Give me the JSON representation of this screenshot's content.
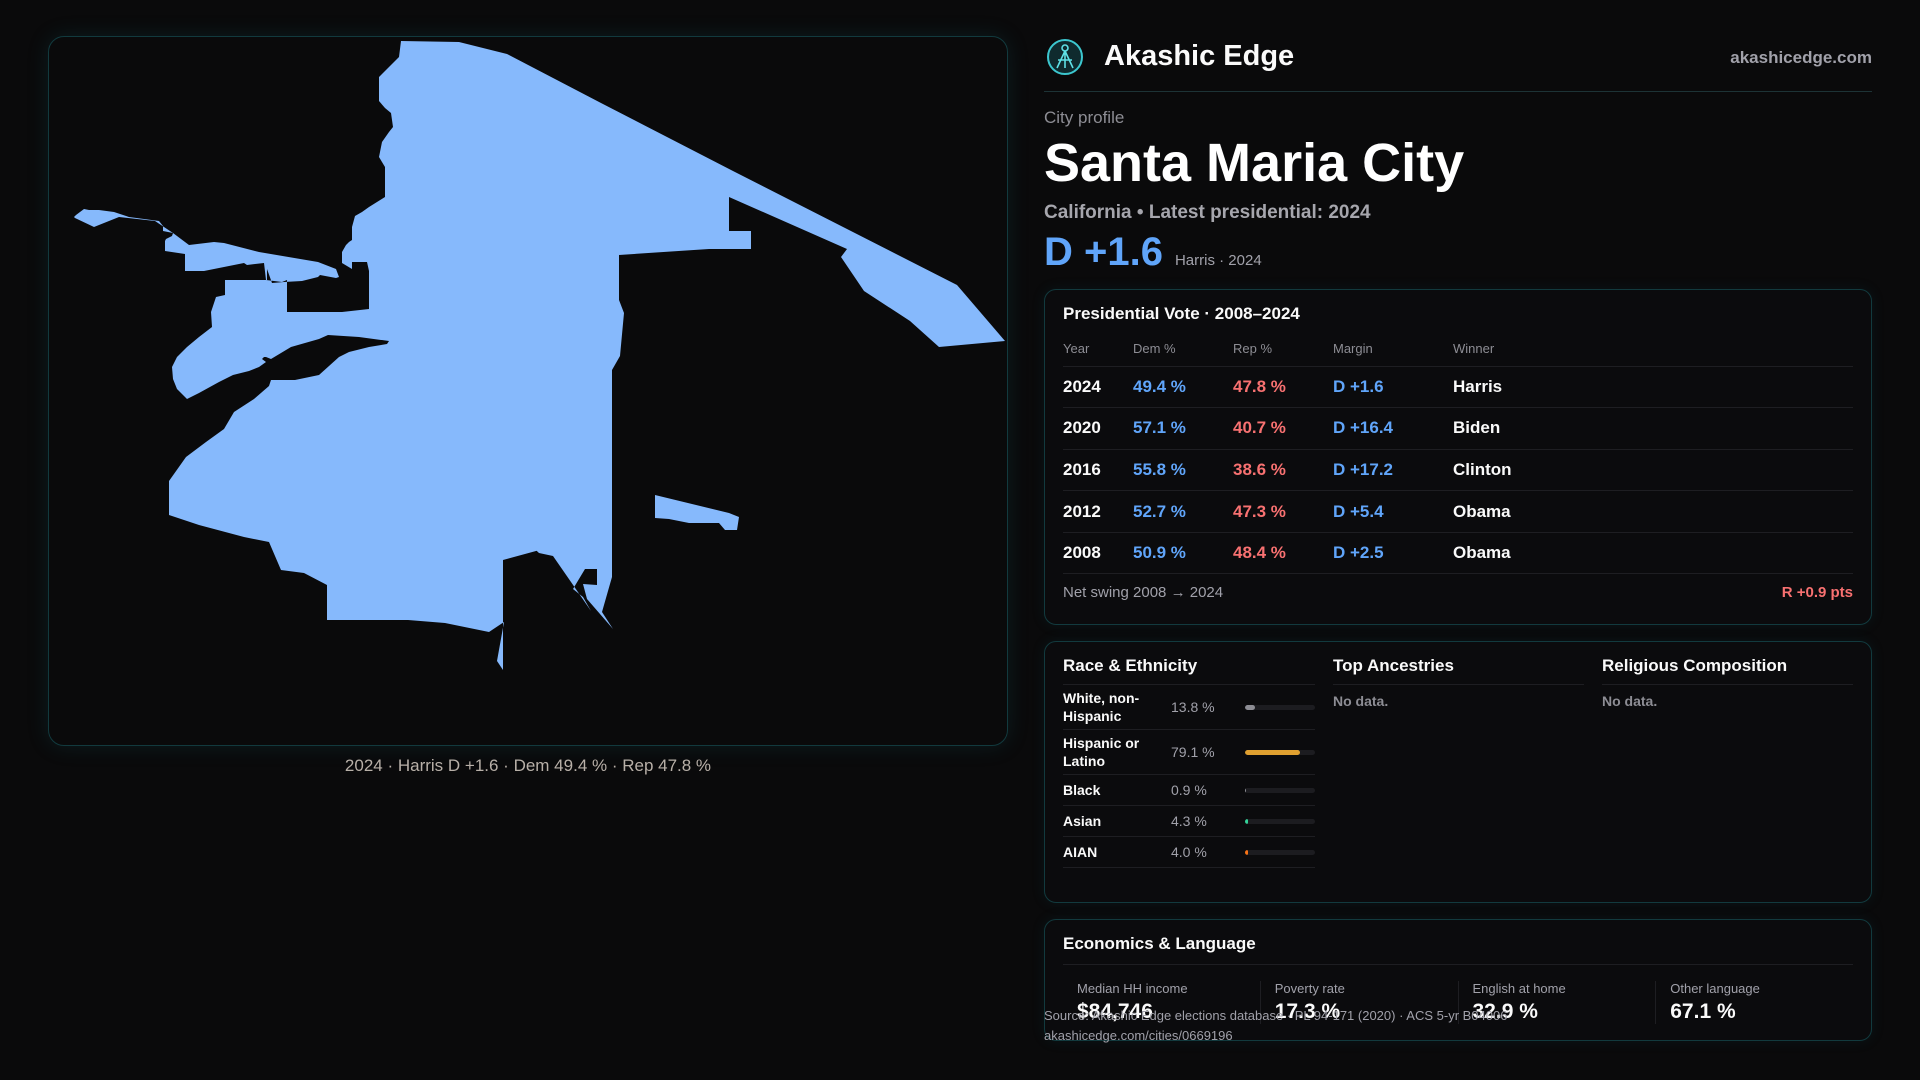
{
  "brand": {
    "name": "Akashic Edge",
    "site": "akashicedge.com"
  },
  "profile": {
    "eyebrow": "City profile",
    "city": "Santa Maria City",
    "subtitle": "California • Latest presidential: 2024",
    "margin": "D +1.6",
    "margin_note": "Harris · 2024"
  },
  "map": {
    "caption": "2024 · Harris D +1.6 · Dem 49.4 % · Rep 47.8 %",
    "fill_color": "#86b9fc"
  },
  "vote": {
    "title": "Presidential Vote · 2008–2024",
    "headers": {
      "year": "Year",
      "dem": "Dem %",
      "rep": "Rep %",
      "margin": "Margin",
      "winner": "Winner"
    },
    "rows": [
      {
        "year": "2024",
        "dem": "49.4 %",
        "rep": "47.8 %",
        "margin": "D +1.6",
        "winner": "Harris"
      },
      {
        "year": "2020",
        "dem": "57.1 %",
        "rep": "40.7 %",
        "margin": "D +16.4",
        "winner": "Biden"
      },
      {
        "year": "2016",
        "dem": "55.8 %",
        "rep": "38.6 %",
        "margin": "D +17.2",
        "winner": "Clinton"
      },
      {
        "year": "2012",
        "dem": "52.7 %",
        "rep": "47.3 %",
        "margin": "D +5.4",
        "winner": "Obama"
      },
      {
        "year": "2008",
        "dem": "50.9 %",
        "rep": "48.4 %",
        "margin": "D +2.5",
        "winner": "Obama"
      }
    ],
    "swing_label": "Net swing 2008 → 2024",
    "swing_value": "R +0.9 pts"
  },
  "demographics": {
    "race_title": "Race & Ethnicity",
    "race": [
      {
        "label": "White, non-Hispanic",
        "value": "13.8 %",
        "pct": 13.8,
        "color": "#8d8d94"
      },
      {
        "label": "Hispanic or Latino",
        "value": "79.1 %",
        "pct": 79.1,
        "color": "#e0a030"
      },
      {
        "label": "Black",
        "value": "0.9 %",
        "pct": 0.9,
        "color": "#8d8d94"
      },
      {
        "label": "Asian",
        "value": "4.3 %",
        "pct": 4.3,
        "color": "#34d399"
      },
      {
        "label": "AIAN",
        "value": "4.0 %",
        "pct": 4.0,
        "color": "#f97316"
      }
    ],
    "ancestries_title": "Top Ancestries",
    "ancestries_empty": "No data.",
    "religion_title": "Religious Composition",
    "religion_empty": "No data."
  },
  "economics": {
    "title": "Economics & Language",
    "cells": [
      {
        "label": "Median HH income",
        "value": "$84,746"
      },
      {
        "label": "Poverty rate",
        "value": "17.3 %"
      },
      {
        "label": "English at home",
        "value": "32.9 %"
      },
      {
        "label": "Other language",
        "value": "67.1 %"
      }
    ]
  },
  "footer": {
    "source": "Source: Akashic Edge elections database · PL 94-171 (2020) · ACS 5-yr B04006",
    "url": "akashicedge.com/cities/0669196"
  }
}
